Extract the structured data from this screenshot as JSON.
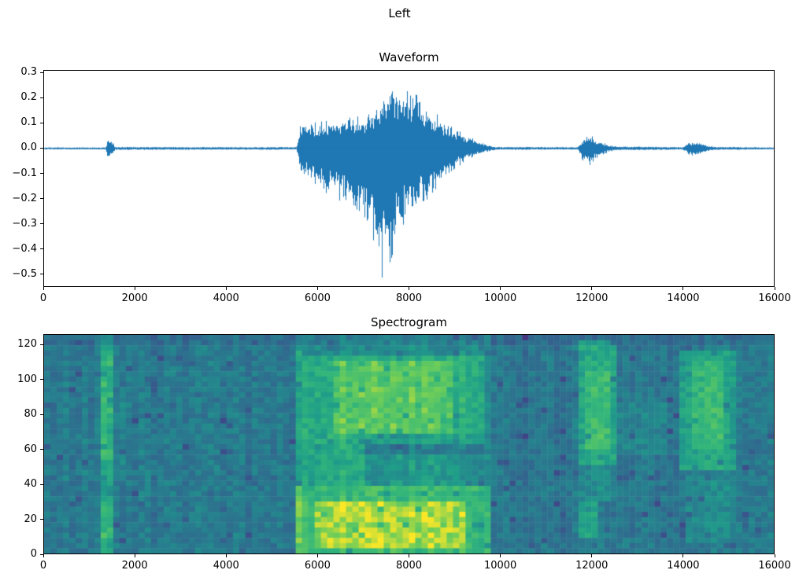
{
  "figure_title": "Left",
  "chart_data": [
    {
      "type": "line",
      "title": "Waveform",
      "xlabel": "",
      "ylabel": "",
      "xlim": [
        0,
        16000
      ],
      "ylim": [
        -0.55,
        0.31
      ],
      "grid": false,
      "line_color": "#1f77b4",
      "x_ticks": [
        {
          "v": 0,
          "label": "0"
        },
        {
          "v": 2000,
          "label": "2000"
        },
        {
          "v": 4000,
          "label": "4000"
        },
        {
          "v": 6000,
          "label": "6000"
        },
        {
          "v": 8000,
          "label": "8000"
        },
        {
          "v": 10000,
          "label": "10000"
        },
        {
          "v": 12000,
          "label": "12000"
        },
        {
          "v": 14000,
          "label": "14000"
        },
        {
          "v": 16000,
          "label": "16000"
        }
      ],
      "y_ticks": [
        {
          "v": 0.3,
          "label": "0.3"
        },
        {
          "v": 0.2,
          "label": "0.2"
        },
        {
          "v": 0.1,
          "label": "0.1"
        },
        {
          "v": 0.0,
          "label": "0.0"
        },
        {
          "v": -0.1,
          "label": "−0.1"
        },
        {
          "v": -0.2,
          "label": "−0.2"
        },
        {
          "v": -0.3,
          "label": "−0.3"
        },
        {
          "v": -0.4,
          "label": "−0.4"
        },
        {
          "v": -0.5,
          "label": "−0.5"
        }
      ],
      "envelope": [
        [
          0,
          0.004,
          -0.004
        ],
        [
          1350,
          0.004,
          -0.004
        ],
        [
          1400,
          0.035,
          -0.045
        ],
        [
          1480,
          0.03,
          -0.035
        ],
        [
          1560,
          0.006,
          -0.006
        ],
        [
          5540,
          0.005,
          -0.005
        ],
        [
          5620,
          0.09,
          -0.1
        ],
        [
          5800,
          0.1,
          -0.12
        ],
        [
          6200,
          0.11,
          -0.18
        ],
        [
          6600,
          0.12,
          -0.22
        ],
        [
          7000,
          0.13,
          -0.28
        ],
        [
          7200,
          0.16,
          -0.38
        ],
        [
          7400,
          0.2,
          -0.52
        ],
        [
          7600,
          0.27,
          -0.45
        ],
        [
          7800,
          0.22,
          -0.32
        ],
        [
          8000,
          0.23,
          -0.28
        ],
        [
          8200,
          0.21,
          -0.25
        ],
        [
          8500,
          0.16,
          -0.18
        ],
        [
          8800,
          0.1,
          -0.12
        ],
        [
          9100,
          0.07,
          -0.07
        ],
        [
          9400,
          0.04,
          -0.035
        ],
        [
          9700,
          0.015,
          -0.015
        ],
        [
          9900,
          0.006,
          -0.006
        ],
        [
          11700,
          0.005,
          -0.005
        ],
        [
          11820,
          0.04,
          -0.05
        ],
        [
          11950,
          0.06,
          -0.07
        ],
        [
          12100,
          0.035,
          -0.04
        ],
        [
          12300,
          0.02,
          -0.02
        ],
        [
          12500,
          0.008,
          -0.008
        ],
        [
          14000,
          0.005,
          -0.005
        ],
        [
          14150,
          0.025,
          -0.03
        ],
        [
          14350,
          0.025,
          -0.025
        ],
        [
          14550,
          0.012,
          -0.012
        ],
        [
          14700,
          0.006,
          -0.006
        ],
        [
          16000,
          0.004,
          -0.004
        ]
      ]
    },
    {
      "type": "heatmap",
      "title": "Spectrogram",
      "xlabel": "",
      "ylabel": "",
      "xlim": [
        0,
        16000
      ],
      "ylim": [
        0,
        126
      ],
      "colormap_name": "viridis",
      "x_ticks": [
        {
          "v": 0,
          "label": "0"
        },
        {
          "v": 2000,
          "label": "2000"
        },
        {
          "v": 4000,
          "label": "4000"
        },
        {
          "v": 6000,
          "label": "6000"
        },
        {
          "v": 8000,
          "label": "8000"
        },
        {
          "v": 10000,
          "label": "10000"
        },
        {
          "v": 12000,
          "label": "12000"
        },
        {
          "v": 14000,
          "label": "14000"
        },
        {
          "v": 16000,
          "label": "16000"
        }
      ],
      "y_ticks": [
        {
          "v": 0,
          "label": "0"
        },
        {
          "v": 20,
          "label": "20"
        },
        {
          "v": 40,
          "label": "40"
        },
        {
          "v": 60,
          "label": "60"
        },
        {
          "v": 80,
          "label": "80"
        },
        {
          "v": 100,
          "label": "100"
        },
        {
          "v": 120,
          "label": "120"
        }
      ],
      "colormap_stops": [
        [
          0.0,
          68,
          1,
          84
        ],
        [
          0.125,
          72,
          40,
          120
        ],
        [
          0.25,
          62,
          74,
          137
        ],
        [
          0.375,
          49,
          104,
          142
        ],
        [
          0.5,
          38,
          130,
          142
        ],
        [
          0.625,
          31,
          158,
          137
        ],
        [
          0.75,
          53,
          183,
          121
        ],
        [
          0.875,
          109,
          205,
          89
        ],
        [
          1.0,
          253,
          231,
          37
        ]
      ],
      "grid": {
        "cols": 116,
        "rows": 42
      },
      "base_level": 0.46,
      "noise": 0.14,
      "regions": [
        {
          "x": [
            1280,
            1560
          ],
          "y": [
            0,
            126
          ],
          "a": 0.16
        },
        {
          "x": [
            1280,
            1560
          ],
          "y": [
            55,
            118
          ],
          "a": 0.1
        },
        {
          "x": [
            1300,
            1520
          ],
          "y": [
            8,
            30
          ],
          "a": 0.12
        },
        {
          "x": [
            1600,
            1760
          ],
          "y": [
            40,
            95
          ],
          "a": 0.07
        },
        {
          "x": [
            5520,
            5720
          ],
          "y": [
            0,
            120
          ],
          "a": 0.12
        },
        {
          "x": [
            5520,
            9780
          ],
          "y": [
            0,
            126
          ],
          "a": 0.08
        },
        {
          "x": [
            5520,
            9780
          ],
          "y": [
            0,
            38
          ],
          "a": 0.22
        },
        {
          "x": [
            5900,
            9300
          ],
          "y": [
            2,
            30
          ],
          "a": 0.16
        },
        {
          "x": [
            5600,
            9700
          ],
          "y": [
            62,
            114
          ],
          "a": 0.16
        },
        {
          "x": [
            6300,
            8900
          ],
          "y": [
            70,
            110
          ],
          "a": 0.12
        },
        {
          "x": [
            5700,
            7100
          ],
          "y": [
            40,
            62
          ],
          "a": 0.14
        },
        {
          "x": [
            7600,
            9100
          ],
          "y": [
            38,
            56
          ],
          "a": 0.07
        },
        {
          "x": [
            6900,
            9650
          ],
          "y": [
            57,
            68
          ],
          "a": -0.07
        },
        {
          "x": [
            9780,
            11650
          ],
          "y": [
            0,
            126
          ],
          "a": -0.02
        },
        {
          "x": [
            11680,
            12580
          ],
          "y": [
            50,
            122
          ],
          "a": 0.22
        },
        {
          "x": [
            11800,
            12400
          ],
          "y": [
            60,
            105
          ],
          "a": 0.08
        },
        {
          "x": [
            11760,
            12180
          ],
          "y": [
            8,
            30
          ],
          "a": 0.2
        },
        {
          "x": [
            11680,
            12580
          ],
          "y": [
            30,
            50
          ],
          "a": 0.07
        },
        {
          "x": [
            12580,
            13650
          ],
          "y": [
            58,
            88
          ],
          "a": 0.06
        },
        {
          "x": [
            13960,
            15180
          ],
          "y": [
            48,
            118
          ],
          "a": 0.18
        },
        {
          "x": [
            14150,
            14950
          ],
          "y": [
            60,
            112
          ],
          "a": 0.1
        },
        {
          "x": [
            14060,
            15120
          ],
          "y": [
            6,
            46
          ],
          "a": 0.07
        },
        {
          "x": [
            0,
            16000
          ],
          "y": [
            119,
            126
          ],
          "a": -0.06
        }
      ]
    }
  ]
}
